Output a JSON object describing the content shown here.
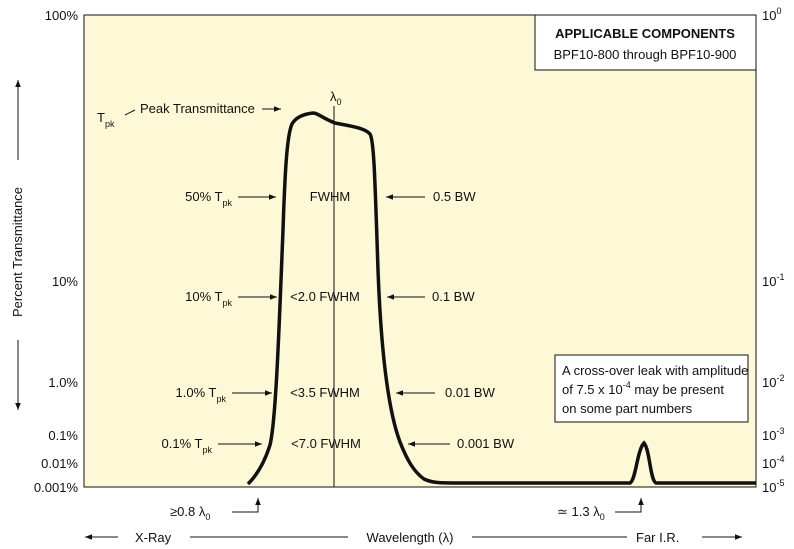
{
  "left_axis": {
    "title": "Percent Transmittance",
    "labels": [
      "100%",
      "10%",
      "1.0%",
      "0.1%",
      "0.01%",
      "0.001%"
    ]
  },
  "right_axis": {
    "labels": [
      {
        "base": "10",
        "exp": "0"
      },
      {
        "base": "10",
        "exp": "-1"
      },
      {
        "base": "10",
        "exp": "-2"
      },
      {
        "base": "10",
        "exp": "-3"
      },
      {
        "base": "10",
        "exp": "-4"
      },
      {
        "base": "10",
        "exp": "-5"
      }
    ]
  },
  "peak": {
    "symbol": {
      "base": "T",
      "sub": "pk"
    },
    "label": "Peak Transmittance"
  },
  "center_label": {
    "base": "λ",
    "sub": "0"
  },
  "levels": [
    {
      "left": {
        "base": "50% T",
        "sub": "pk"
      },
      "center": "FWHM",
      "right": "0.5 BW"
    },
    {
      "left": {
        "base": "10% T",
        "sub": "pk"
      },
      "center": "<2.0 FWHM",
      "right": "0.1 BW"
    },
    {
      "left": {
        "base": "1.0% T",
        "sub": "pk"
      },
      "center": "<3.5 FWHM",
      "right": "0.01 BW"
    },
    {
      "left": {
        "base": "0.1% T",
        "sub": "pk"
      },
      "center": "<7.0 FWHM",
      "right": "0.001 BW"
    }
  ],
  "markers": [
    {
      "base": "≥0.8 λ",
      "sub": "0"
    },
    {
      "base": "≃ 1.3 λ",
      "sub": "0"
    }
  ],
  "bottom": [
    "X-Ray",
    "Wavelength (λ)",
    "Far I.R."
  ],
  "components_box": {
    "title": "APPLICABLE COMPONENTS",
    "text": "BPF10-800 through BPF10-900"
  },
  "leak_note": {
    "line1": "A cross-over leak with amplitude",
    "line2": {
      "base": "of 7.5 x 10",
      "exp": "-4",
      "suffix": " may be present"
    },
    "line3": "on some part numbers"
  }
}
